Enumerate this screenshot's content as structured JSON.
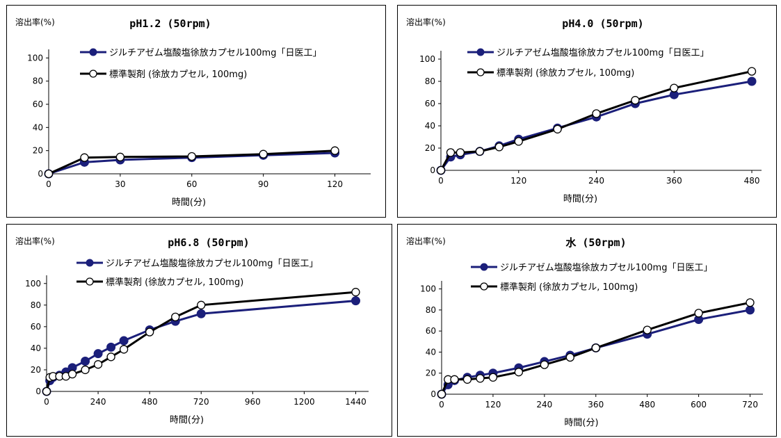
{
  "colors": {
    "series_a": "#1b1f7a",
    "series_b": "#000000",
    "background": "#ffffff"
  },
  "chart_data": [
    {
      "type": "line",
      "title": "pH1.2 (50rpm)",
      "ylabel": "溶出率(%)",
      "xlabel": "時間(分)",
      "xlim": [
        0,
        135
      ],
      "ylim": [
        0,
        105
      ],
      "xticks": [
        0,
        30,
        60,
        90,
        120
      ],
      "yticks": [
        0,
        20,
        40,
        60,
        80,
        100
      ],
      "series": [
        {
          "name": "ジルチアゼム塩酸塩徐放カプセル100mg「日医工」",
          "marker": "filled",
          "x": [
            0,
            15,
            30,
            60,
            90,
            120
          ],
          "y": [
            0,
            10,
            12,
            14,
            16,
            18
          ]
        },
        {
          "name": "標準製剤 (徐放カプセル, 100mg)",
          "marker": "open",
          "x": [
            0,
            15,
            30,
            60,
            90,
            120
          ],
          "y": [
            0,
            14,
            14.5,
            15,
            17,
            20
          ]
        }
      ]
    },
    {
      "type": "line",
      "title": "pH4.0 (50rpm)",
      "ylabel": "溶出率(%)",
      "xlabel": "時間(分)",
      "xlim": [
        0,
        495
      ],
      "ylim": [
        0,
        105
      ],
      "xticks": [
        0,
        120,
        240,
        360,
        480
      ],
      "yticks": [
        0,
        20,
        40,
        60,
        80,
        100
      ],
      "series": [
        {
          "name": "ジルチアゼム塩酸塩徐放カプセル100mg「日医工」",
          "marker": "filled",
          "x": [
            0,
            15,
            30,
            60,
            90,
            120,
            180,
            240,
            300,
            360,
            480
          ],
          "y": [
            0,
            12,
            14,
            17,
            22,
            28,
            38,
            48,
            60,
            68,
            80
          ]
        },
        {
          "name": "標準製剤 (徐放カプセル, 100mg)",
          "marker": "open",
          "x": [
            0,
            15,
            30,
            60,
            90,
            120,
            180,
            240,
            300,
            360,
            480
          ],
          "y": [
            0,
            16,
            16,
            17,
            21,
            26,
            37,
            51,
            63,
            74,
            89
          ]
        }
      ]
    },
    {
      "type": "line",
      "title": "pH6.8 (50rpm)",
      "ylabel": "溶出率(%)",
      "xlabel": "時間(分)",
      "xlim": [
        0,
        1500
      ],
      "ylim": [
        0,
        105
      ],
      "xticks": [
        0,
        240,
        480,
        720,
        960,
        1200,
        1440
      ],
      "yticks": [
        0,
        20,
        40,
        60,
        80,
        100
      ],
      "series": [
        {
          "name": "ジルチアゼム塩酸塩徐放カプセル100mg「日医工」",
          "marker": "filled",
          "x": [
            0,
            15,
            30,
            60,
            90,
            120,
            180,
            240,
            300,
            360,
            480,
            600,
            720,
            1440
          ],
          "y": [
            0,
            10,
            13,
            15,
            18,
            22,
            28,
            35,
            41,
            47,
            57,
            65,
            72,
            84
          ]
        },
        {
          "name": "標準製剤 (徐放カプセル, 100mg)",
          "marker": "open",
          "x": [
            0,
            15,
            30,
            60,
            90,
            120,
            180,
            240,
            300,
            360,
            480,
            600,
            720,
            1440
          ],
          "y": [
            0,
            13,
            14,
            14,
            14,
            16,
            20,
            25,
            32,
            39,
            55,
            69,
            80,
            92
          ]
        }
      ]
    },
    {
      "type": "line",
      "title": "水 (50rpm)",
      "ylabel": "溶出率(%)",
      "xlabel": "時間(分)",
      "xlim": [
        0,
        750
      ],
      "ylim": [
        0,
        105
      ],
      "xticks": [
        0,
        120,
        240,
        360,
        480,
        600,
        720
      ],
      "yticks": [
        0,
        20,
        40,
        60,
        80,
        100
      ],
      "series": [
        {
          "name": "ジルチアゼム塩酸塩徐放カプセル100mg「日医工」",
          "marker": "filled",
          "x": [
            0,
            15,
            30,
            60,
            90,
            120,
            180,
            240,
            300,
            360,
            480,
            600,
            720
          ],
          "y": [
            0,
            9,
            13,
            16,
            18,
            20,
            25,
            31,
            37,
            44,
            57,
            71,
            80
          ]
        },
        {
          "name": "標準製剤 (徐放カプセル, 100mg)",
          "marker": "open",
          "x": [
            0,
            15,
            30,
            60,
            90,
            120,
            180,
            240,
            300,
            360,
            480,
            600,
            720
          ],
          "y": [
            0,
            14,
            14,
            14,
            15,
            16,
            21,
            28,
            35,
            44,
            61,
            77,
            87
          ]
        }
      ]
    }
  ]
}
